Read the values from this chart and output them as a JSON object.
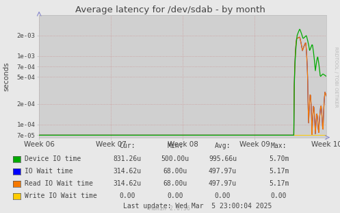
{
  "title": "Average latency for /dev/sdab - by month",
  "ylabel": "seconds",
  "bg_color": "#e8e8e8",
  "plot_bg_color": "#d0d0d0",
  "x_tick_labels": [
    "Week 06",
    "Week 07",
    "Week 08",
    "Week 09",
    "Week 10"
  ],
  "yticks": [
    7e-05,
    0.0001,
    0.0002,
    0.0005,
    0.0007,
    0.001,
    0.002
  ],
  "ytick_labels": [
    "7e-05",
    "1e-04",
    "2e-04",
    "5e-04",
    "7e-04",
    "1e-03",
    "2e-03"
  ],
  "ymin": 6.5e-05,
  "ymax": 0.004,
  "legend_entries": [
    {
      "label": "Device IO time",
      "color": "#00aa00"
    },
    {
      "label": "IO Wait time",
      "color": "#0000ff"
    },
    {
      "label": "Read IO Wait time",
      "color": "#f57900"
    },
    {
      "label": "Write IO Wait time",
      "color": "#ffcc00"
    }
  ],
  "legend_stats": [
    {
      "cur": "831.26u",
      "min": "500.00u",
      "avg": "995.66u",
      "max": "5.70m"
    },
    {
      "cur": "314.62u",
      "min": "68.00u",
      "avg": "497.97u",
      "max": "5.17m"
    },
    {
      "cur": "314.62u",
      "min": "68.00u",
      "avg": "497.97u",
      "max": "5.17m"
    },
    {
      "cur": "0.00",
      "min": "0.00",
      "avg": "0.00",
      "max": "0.00"
    }
  ],
  "last_update": "Last update: Wed Mar  5 23:00:04 2025",
  "munin_version": "Munin 2.0.56",
  "rrdtool_label": "RRDTOOL / TOBI OETIKER"
}
